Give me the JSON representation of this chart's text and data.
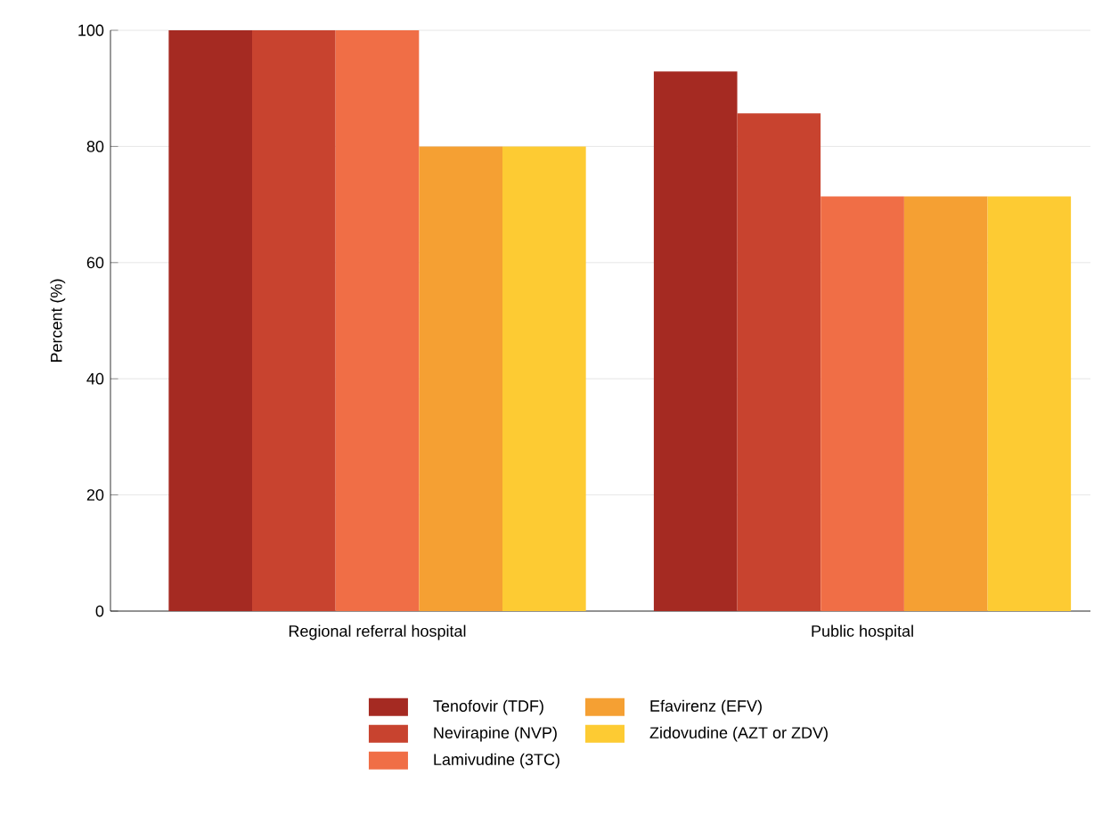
{
  "chart_data": {
    "type": "bar",
    "ylabel": "Percent (%)",
    "categories": [
      "Regional referral hospital",
      "Public hospital"
    ],
    "series": [
      {
        "name": "Tenofovir (TDF)",
        "color": "#a52a22",
        "values": [
          100,
          92.9
        ]
      },
      {
        "name": "Nevirapine (NVP)",
        "color": "#c8432f",
        "values": [
          100,
          85.7
        ]
      },
      {
        "name": "Lamivudine (3TC)",
        "color": "#f06e46",
        "values": [
          100,
          71.4
        ]
      },
      {
        "name": "Efavirenz (EFV)",
        "color": "#f5a033",
        "values": [
          80,
          71.4
        ]
      },
      {
        "name": "Zidovudine (AZT or ZDV)",
        "color": "#fdcb33",
        "values": [
          80,
          71.4
        ]
      }
    ],
    "ylim": [
      0,
      100
    ],
    "yticks": [
      0,
      20,
      40,
      60,
      80,
      100
    ],
    "grid": "y",
    "legend": "bottom"
  }
}
